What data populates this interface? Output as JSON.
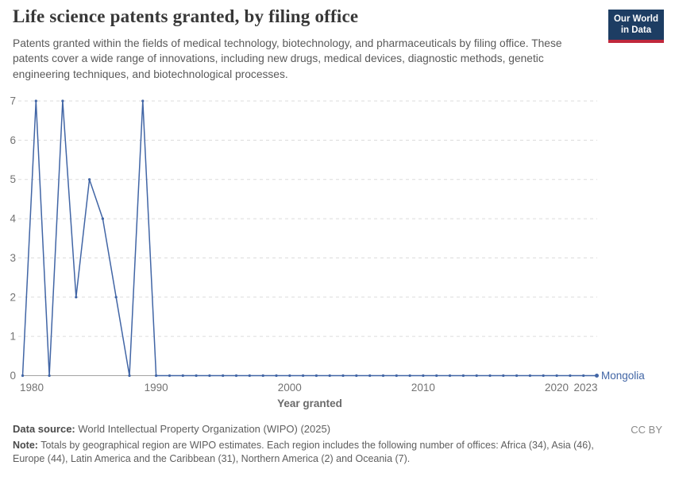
{
  "header": {
    "title": "Life science patents granted, by filing office",
    "subtitle": "Patents granted within the fields of medical technology, biotechnology, and pharmaceuticals by filing office. These patents cover a wide range of innovations, including new drugs, medical devices, diagnostic methods, genetic engineering techniques, and biotechnological processes.",
    "logo": {
      "line1": "Our World",
      "line2": "in Data",
      "bg_color": "#1d3d63",
      "bar_color": "#c0283c"
    }
  },
  "chart_data": {
    "type": "line",
    "title": "Life science patents granted, by filing office",
    "xlabel": "Year granted",
    "ylabel": "",
    "ylim": [
      0,
      7
    ],
    "yticks": [
      0,
      1,
      2,
      3,
      4,
      5,
      6,
      7
    ],
    "xticks": [
      1980,
      1990,
      2000,
      2010,
      2020,
      2023
    ],
    "grid": "dashed horizontal",
    "legend_position": "end-of-line label",
    "x": [
      1980,
      1981,
      1982,
      1983,
      1984,
      1985,
      1986,
      1987,
      1988,
      1989,
      1990,
      1991,
      1992,
      1993,
      1994,
      1995,
      1996,
      1997,
      1998,
      1999,
      2000,
      2001,
      2002,
      2003,
      2004,
      2005,
      2006,
      2007,
      2008,
      2009,
      2010,
      2011,
      2012,
      2013,
      2014,
      2015,
      2016,
      2017,
      2018,
      2019,
      2020,
      2021,
      2022,
      2023
    ],
    "series": [
      {
        "name": "Mongolia",
        "color": "#4165a5",
        "values": [
          0,
          7,
          0,
          7,
          2,
          5,
          4,
          2,
          0,
          7,
          0,
          0,
          0,
          0,
          0,
          0,
          0,
          0,
          0,
          0,
          0,
          0,
          0,
          0,
          0,
          0,
          0,
          0,
          0,
          0,
          0,
          0,
          0,
          0,
          0,
          0,
          0,
          0,
          0,
          0,
          0,
          0,
          0,
          0
        ]
      }
    ],
    "colors": {
      "grid": "#dcdcdc",
      "baseline": "#a3a3a3",
      "axis_text": "#737373",
      "axis_title_text": "#6a6a6a"
    }
  },
  "footer": {
    "source_label": "Data source:",
    "source_text": " World Intellectual Property Organization (WIPO) (2025)",
    "license": "CC BY",
    "note_label": "Note:",
    "note_text": " Totals by geographical region are WIPO estimates. Each region includes the following number of offices: Africa (34), Asia (46), Europe (44), Latin America and the Caribbean (31), Northern America (2) and Oceania (7)."
  }
}
